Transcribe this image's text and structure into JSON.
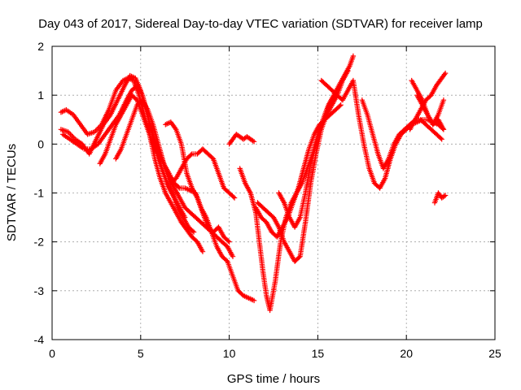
{
  "chart_data": {
    "type": "scatter",
    "title": "Day 043 of 2017, Sidereal Day-to-day VTEC variation (SDTVAR) for receiver lamp",
    "xlabel": "GPS time / hours",
    "ylabel": "SDTVAR / TECUs",
    "xlim": [
      0,
      25
    ],
    "ylim": [
      -4,
      2
    ],
    "xticks": [
      0,
      5,
      10,
      15,
      20,
      25
    ],
    "yticks": [
      -4,
      -3,
      -2,
      -1,
      0,
      1,
      2
    ],
    "grid": true,
    "marker": "plus",
    "color": "#ff0000",
    "series": [
      {
        "x": [
          0.5,
          0.8,
          1.2,
          1.6,
          2.0,
          2.4,
          2.8,
          3.2,
          3.6,
          4.0,
          4.3,
          4.6,
          4.9,
          5.2,
          5.5,
          5.8,
          6.1,
          6.4,
          6.7,
          7.0,
          7.3,
          7.6,
          7.9,
          8.2,
          8.5
        ],
        "y": [
          0.65,
          0.7,
          0.6,
          0.4,
          0.2,
          0.25,
          0.4,
          0.7,
          1.1,
          1.3,
          1.35,
          1.3,
          1.0,
          0.6,
          0.2,
          -0.3,
          -0.7,
          -1.0,
          -1.2,
          -1.4,
          -1.6,
          -1.75,
          -1.9,
          -2.0,
          -2.2
        ]
      },
      {
        "x": [
          0.5,
          0.9,
          1.3,
          1.7,
          2.1,
          2.5,
          2.9,
          3.3,
          3.7,
          4.1,
          4.4,
          4.7,
          5.0,
          5.3,
          5.6,
          5.9,
          6.2,
          6.5,
          6.8,
          7.1,
          7.4,
          7.7,
          8.0
        ],
        "y": [
          0.3,
          0.25,
          0.1,
          0.0,
          -0.2,
          0.1,
          0.4,
          0.6,
          0.9,
          1.2,
          1.4,
          1.35,
          1.1,
          0.7,
          0.3,
          -0.1,
          -0.5,
          -0.8,
          -1.0,
          -1.3,
          -1.5,
          -1.7,
          -1.8
        ]
      },
      {
        "x": [
          0.6,
          1.0,
          1.4,
          1.8,
          2.2,
          2.6,
          3.0,
          3.4,
          3.8,
          4.2,
          4.5,
          4.8,
          5.1,
          5.4,
          5.7,
          6.0,
          6.3,
          6.6,
          6.9,
          7.2,
          7.5
        ],
        "y": [
          0.2,
          0.1,
          0.0,
          -0.1,
          -0.1,
          0.0,
          0.2,
          0.4,
          0.6,
          0.9,
          1.1,
          1.2,
          1.0,
          0.6,
          0.1,
          -0.3,
          -0.6,
          -0.9,
          -1.1,
          -1.3,
          -1.5
        ]
      },
      {
        "x": [
          2.7,
          3.0,
          3.3,
          3.6,
          3.9,
          4.2,
          4.5,
          4.8,
          5.1,
          5.4,
          5.7,
          6.0,
          6.3,
          6.6,
          6.9,
          7.2,
          7.5,
          7.8,
          8.1,
          8.4,
          8.7,
          9.0,
          9.3,
          9.6,
          9.9,
          10.2,
          10.5,
          10.8,
          11.1,
          11.4
        ],
        "y": [
          -0.4,
          -0.2,
          0.1,
          0.4,
          0.6,
          0.8,
          1.0,
          0.9,
          0.6,
          0.3,
          0.0,
          -0.2,
          -0.4,
          -0.6,
          -0.8,
          -0.9,
          -0.9,
          -0.95,
          -1.0,
          -1.3,
          -1.5,
          -1.8,
          -2.1,
          -2.3,
          -2.4,
          -2.7,
          -3.0,
          -3.1,
          -3.15,
          -3.2
        ]
      },
      {
        "x": [
          3.6,
          3.9,
          4.2,
          4.5,
          4.8,
          5.1,
          5.4,
          5.7,
          6.0,
          6.3,
          6.6,
          6.9,
          7.2,
          7.5,
          7.8,
          8.1,
          8.4,
          8.7,
          9.0,
          9.3,
          9.6,
          9.9,
          10.2
        ],
        "y": [
          -0.3,
          -0.1,
          0.2,
          0.5,
          0.8,
          0.9,
          0.7,
          0.4,
          0.0,
          -0.4,
          -0.7,
          -0.9,
          -1.1,
          -1.3,
          -1.4,
          -1.5,
          -1.6,
          -1.7,
          -1.8,
          -1.9,
          -2.0,
          -2.1,
          -2.3
        ]
      },
      {
        "x": [
          5.5,
          5.8,
          6.1,
          6.4,
          6.7,
          7.0,
          7.3,
          7.6,
          7.9,
          8.2,
          8.5,
          8.8,
          9.1,
          9.4,
          9.7,
          10.0,
          10.3
        ],
        "y": [
          0.4,
          0.1,
          -0.2,
          -0.5,
          -0.8,
          -0.7,
          -0.5,
          -0.3,
          -0.2,
          -0.2,
          -0.1,
          -0.2,
          -0.3,
          -0.6,
          -0.9,
          -1.0,
          -1.1
        ]
      },
      {
        "x": [
          6.4,
          6.7,
          7.0,
          7.3,
          7.6,
          7.9,
          8.2,
          8.5,
          8.8,
          9.1,
          9.4,
          9.7,
          10.0
        ],
        "y": [
          0.4,
          0.45,
          0.3,
          0.0,
          -0.6,
          -0.9,
          -1.1,
          -1.4,
          -1.7,
          -1.8,
          -1.7,
          -1.9,
          -2.0
        ]
      },
      {
        "x": [
          10.0,
          10.2,
          10.4,
          10.6,
          10.8,
          11.0,
          11.2,
          11.4
        ],
        "y": [
          0.0,
          0.1,
          0.2,
          0.15,
          0.1,
          0.15,
          0.1,
          0.05
        ]
      },
      {
        "x": [
          10.6,
          10.9,
          11.2,
          11.5,
          11.7,
          11.9,
          12.1,
          12.3,
          12.6,
          12.9,
          13.2,
          13.5,
          13.8,
          14.1,
          14.4,
          14.7,
          15.0,
          15.3,
          15.6,
          15.9,
          16.2,
          16.5,
          16.8,
          17.0
        ],
        "y": [
          -0.5,
          -0.8,
          -1.0,
          -1.4,
          -2.0,
          -2.6,
          -3.1,
          -3.4,
          -2.8,
          -2.0,
          -1.5,
          -1.2,
          -1.0,
          -0.8,
          -0.5,
          -0.2,
          0.2,
          0.5,
          0.8,
          1.0,
          1.2,
          1.4,
          1.6,
          1.8
        ]
      },
      {
        "x": [
          11.6,
          11.9,
          12.2,
          12.5,
          12.8,
          13.1,
          13.4,
          13.7,
          14.0,
          14.3,
          14.6,
          14.9,
          15.2,
          15.5,
          15.8,
          16.1,
          16.4,
          16.7
        ],
        "y": [
          -1.2,
          -1.3,
          -1.4,
          -1.5,
          -1.7,
          -2.0,
          -2.2,
          -2.4,
          -2.3,
          -1.6,
          -0.8,
          -0.2,
          0.3,
          0.6,
          0.8,
          1.0,
          1.3,
          1.5
        ]
      },
      {
        "x": [
          11.5,
          11.8,
          12.1,
          12.4,
          12.7,
          13.0,
          13.3,
          13.6,
          13.9,
          14.2,
          14.5,
          14.8,
          15.1,
          15.4,
          15.7,
          16.0,
          16.3
        ],
        "y": [
          -1.3,
          -1.5,
          -1.6,
          -1.8,
          -1.9,
          -1.7,
          -1.5,
          -1.2,
          -0.9,
          -0.5,
          -0.1,
          0.2,
          0.4,
          0.5,
          0.6,
          0.7,
          0.8
        ]
      },
      {
        "x": [
          12.8,
          13.1,
          13.4,
          13.7,
          14.0,
          14.3,
          14.6,
          14.9,
          15.2,
          15.5,
          15.8,
          16.1
        ],
        "y": [
          -1.0,
          -1.2,
          -1.5,
          -1.7,
          -1.5,
          -1.0,
          -0.4,
          0.0,
          0.4,
          0.7,
          0.9,
          1.0
        ]
      },
      {
        "x": [
          15.2,
          15.5,
          15.8,
          16.1,
          16.4,
          16.7,
          17.0,
          17.3,
          17.6,
          17.9,
          18.2,
          18.5,
          18.8,
          19.1,
          19.4,
          19.7,
          20.0,
          20.3,
          20.6,
          20.9,
          21.2,
          21.5,
          21.8,
          22.1
        ],
        "y": [
          1.3,
          1.2,
          1.1,
          1.0,
          0.9,
          1.1,
          1.3,
          0.6,
          0.0,
          -0.5,
          -0.8,
          -0.9,
          -0.7,
          -0.3,
          0.0,
          0.2,
          0.3,
          0.4,
          0.45,
          0.5,
          0.5,
          0.45,
          0.4,
          0.3
        ]
      },
      {
        "x": [
          17.5,
          17.8,
          18.1,
          18.4,
          18.7,
          19.0,
          19.3,
          19.6,
          19.9,
          20.2,
          20.5,
          20.8,
          21.1,
          21.4,
          21.7,
          22.0
        ],
        "y": [
          0.9,
          0.6,
          0.2,
          -0.2,
          -0.5,
          -0.3,
          0.0,
          0.2,
          0.3,
          0.4,
          0.5,
          0.5,
          0.4,
          0.3,
          0.2,
          0.1
        ]
      },
      {
        "x": [
          20.6,
          20.9,
          21.2,
          21.5,
          21.8,
          22.1
        ],
        "y": [
          1.0,
          0.8,
          0.6,
          0.4,
          0.5,
          0.3
        ]
      },
      {
        "x": [
          20.2,
          20.5,
          20.8,
          21.1,
          21.4,
          21.7,
          22.0,
          22.2
        ],
        "y": [
          0.3,
          0.5,
          0.7,
          0.9,
          1.0,
          1.2,
          1.35,
          1.45
        ]
      },
      {
        "x": [
          20.3,
          20.6,
          20.9,
          21.2,
          21.5,
          21.8,
          22.1
        ],
        "y": [
          1.3,
          1.1,
          0.9,
          0.6,
          0.4,
          0.6,
          0.9
        ]
      },
      {
        "x": [
          21.6,
          21.8,
          22.0,
          22.2
        ],
        "y": [
          -1.2,
          -1.0,
          -1.1,
          -1.05
        ]
      }
    ]
  }
}
